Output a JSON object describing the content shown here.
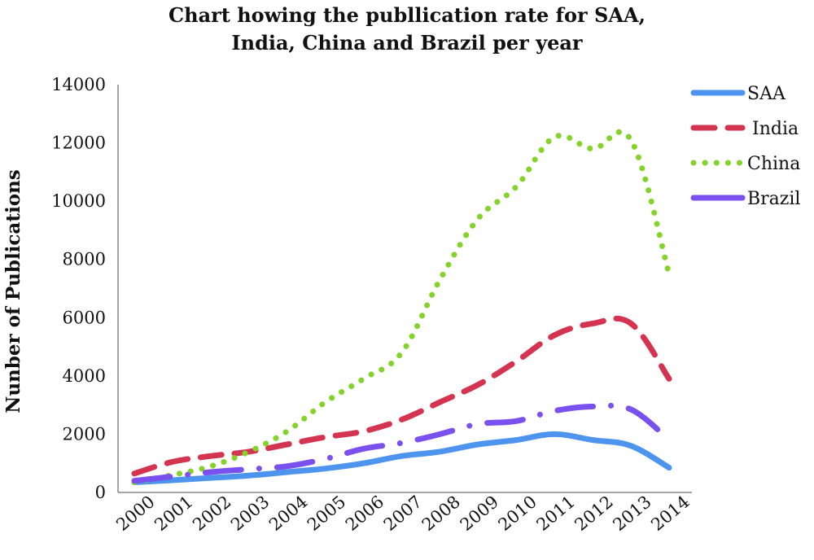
{
  "chart_data": {
    "type": "line",
    "title_line1": "Chart howing the publlication rate for SAA,",
    "title_line2": "India, China and Brazil per year",
    "ylabel": "Nunber of Publications",
    "xlabel": "",
    "ylim": [
      0,
      14000
    ],
    "yticks": [
      0,
      2000,
      4000,
      6000,
      8000,
      10000,
      12000,
      14000
    ],
    "categories": [
      "2000",
      "2001",
      "2002",
      "2003",
      "2004",
      "2005",
      "2006",
      "2007",
      "2008",
      "2009",
      "2010",
      "2011",
      "2012",
      "2013",
      "2014"
    ],
    "grid": false,
    "legend_position": "right",
    "series": [
      {
        "name": "SAA",
        "color": "#4d94ef",
        "style": "solid",
        "values": [
          350,
          420,
          500,
          580,
          700,
          820,
          1000,
          1250,
          1400,
          1650,
          1800,
          2000,
          1800,
          1600,
          850
        ]
      },
      {
        "name": "India",
        "color": "#d4344f",
        "style": "dashed",
        "values": [
          650,
          1050,
          1250,
          1400,
          1650,
          1900,
          2100,
          2500,
          3100,
          3700,
          4500,
          5400,
          5800,
          5800,
          3900
        ]
      },
      {
        "name": "China",
        "color": "#84d22a",
        "style": "dotted",
        "values": [
          350,
          600,
          900,
          1400,
          2100,
          3100,
          3900,
          4800,
          7300,
          9400,
          10500,
          12200,
          11800,
          12100,
          7500
        ]
      },
      {
        "name": "Brazil",
        "color": "#7a50ee",
        "style": "dashdot",
        "values": [
          400,
          550,
          700,
          800,
          900,
          1150,
          1500,
          1700,
          2000,
          2350,
          2450,
          2800,
          2950,
          2850,
          1800
        ]
      }
    ]
  }
}
